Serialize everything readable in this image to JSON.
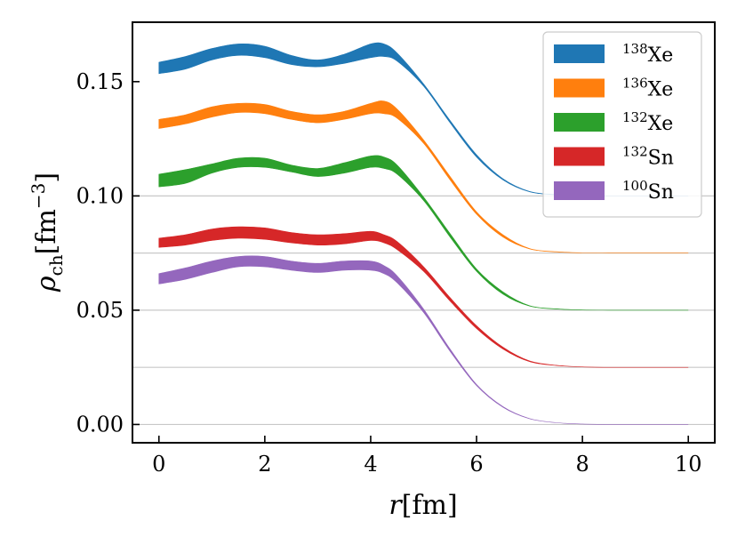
{
  "chart_data": {
    "type": "area",
    "xlabel_base": "r",
    "xlabel_unit": "[fm]",
    "ylabel_symbol": "ρ",
    "ylabel_sub": "ch",
    "ylabel_unit_open": "[fm",
    "ylabel_unit_exp": "−3",
    "ylabel_unit_close": "]",
    "xlim": [
      -0.5,
      10.5
    ],
    "ylim": [
      -0.008,
      0.176
    ],
    "xticks": [
      0,
      2,
      4,
      6,
      8,
      10
    ],
    "xtick_labels": [
      "0",
      "2",
      "4",
      "6",
      "8",
      "10"
    ],
    "yticks": [
      0.0,
      0.05,
      0.1,
      0.15
    ],
    "ytick_labels": [
      "0.00",
      "0.05",
      "0.10",
      "0.15"
    ],
    "grid_y_lines": [
      0.0,
      0.025,
      0.05,
      0.075,
      0.1
    ],
    "legend_position": "top-right",
    "x": [
      0,
      0.5,
      1,
      1.5,
      2,
      2.5,
      3,
      3.5,
      4,
      4.25,
      4.5,
      5,
      5.5,
      6,
      6.5,
      7,
      7.5,
      8,
      8.5,
      9,
      9.5,
      10
    ],
    "series": [
      {
        "name": "138Xe",
        "mass": "138",
        "element": "Xe",
        "color": "#1f77b4",
        "lower": [
          0.1535,
          0.1555,
          0.1595,
          0.1615,
          0.1605,
          0.1575,
          0.1565,
          0.158,
          0.1605,
          0.161,
          0.159,
          0.148,
          0.132,
          0.117,
          0.107,
          0.1018,
          0.1005,
          0.1001,
          0.1,
          0.1,
          0.1,
          0.1
        ],
        "upper": [
          0.1585,
          0.161,
          0.1645,
          0.1665,
          0.1655,
          0.1615,
          0.1595,
          0.162,
          0.1665,
          0.1665,
          0.1625,
          0.149,
          0.133,
          0.118,
          0.1075,
          0.102,
          0.1006,
          0.1001,
          0.1,
          0.1,
          0.1,
          0.1
        ]
      },
      {
        "name": "136Xe",
        "mass": "136",
        "element": "Xe",
        "color": "#ff7f0e",
        "lower": [
          0.1295,
          0.1315,
          0.1345,
          0.1365,
          0.136,
          0.1335,
          0.132,
          0.1335,
          0.136,
          0.136,
          0.134,
          0.123,
          0.107,
          0.092,
          0.082,
          0.0768,
          0.0755,
          0.0751,
          0.075,
          0.075,
          0.075,
          0.075
        ],
        "upper": [
          0.1335,
          0.1355,
          0.139,
          0.1405,
          0.14,
          0.137,
          0.1355,
          0.137,
          0.1405,
          0.1415,
          0.138,
          0.1245,
          0.1085,
          0.093,
          0.083,
          0.077,
          0.0756,
          0.0751,
          0.075,
          0.075,
          0.075,
          0.075
        ]
      },
      {
        "name": "132Xe",
        "mass": "132",
        "element": "Xe",
        "color": "#2ca02c",
        "lower": [
          0.104,
          0.1055,
          0.11,
          0.1125,
          0.1125,
          0.1105,
          0.1085,
          0.11,
          0.1125,
          0.112,
          0.1095,
          0.098,
          0.082,
          0.067,
          0.057,
          0.0518,
          0.0505,
          0.0501,
          0.05,
          0.05,
          0.05,
          0.05
        ],
        "upper": [
          0.1095,
          0.1115,
          0.114,
          0.1165,
          0.1165,
          0.1135,
          0.112,
          0.1145,
          0.1175,
          0.117,
          0.1135,
          0.0995,
          0.0835,
          0.068,
          0.058,
          0.052,
          0.0506,
          0.0501,
          0.05,
          0.05,
          0.05,
          0.05
        ]
      },
      {
        "name": "132Sn",
        "mass": "132",
        "element": "Sn",
        "color": "#d62728",
        "lower": [
          0.0775,
          0.0785,
          0.0805,
          0.0815,
          0.081,
          0.0795,
          0.0785,
          0.079,
          0.0805,
          0.0795,
          0.0765,
          0.067,
          0.054,
          0.042,
          0.033,
          0.0275,
          0.0258,
          0.0252,
          0.025,
          0.025,
          0.025,
          0.025
        ],
        "upper": [
          0.0815,
          0.083,
          0.0855,
          0.0865,
          0.086,
          0.084,
          0.083,
          0.0835,
          0.0845,
          0.083,
          0.08,
          0.069,
          0.0555,
          0.0432,
          0.0338,
          0.0278,
          0.0259,
          0.0252,
          0.025,
          0.025,
          0.025,
          0.025
        ]
      },
      {
        "name": "100Sn",
        "mass": "100",
        "element": "Sn",
        "color": "#9467bd",
        "lower": [
          0.0615,
          0.0635,
          0.0665,
          0.069,
          0.069,
          0.0675,
          0.0665,
          0.0675,
          0.0675,
          0.066,
          0.062,
          0.049,
          0.032,
          0.017,
          0.0075,
          0.0025,
          0.0008,
          0.0002,
          0.0,
          0.0,
          0.0,
          0.0
        ],
        "upper": [
          0.066,
          0.0685,
          0.0715,
          0.0735,
          0.0735,
          0.0715,
          0.0705,
          0.0715,
          0.0715,
          0.0695,
          0.065,
          0.0505,
          0.033,
          0.0175,
          0.0078,
          0.0026,
          0.0008,
          0.0002,
          0.0,
          0.0,
          0.0,
          0.0
        ]
      }
    ]
  }
}
